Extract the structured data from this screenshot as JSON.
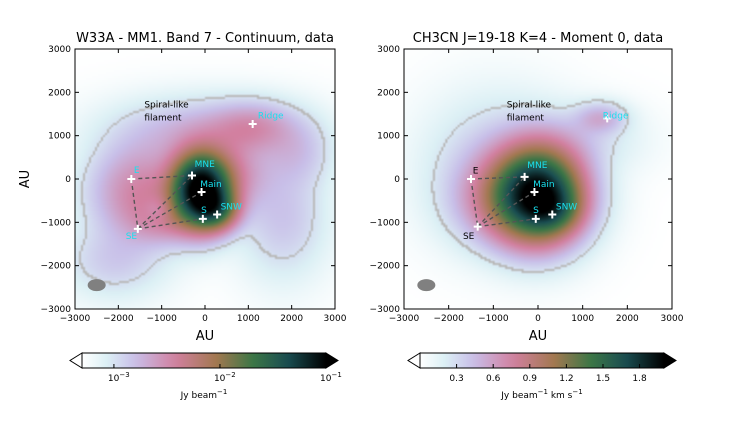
{
  "chart_data": [
    {
      "type": "heatmap",
      "title": "W33A - MM1. Band 7 - Continuum, data",
      "xlabel": "AU",
      "ylabel": "AU",
      "xlim": [
        -3000,
        3000
      ],
      "ylim": [
        -3000,
        3000
      ],
      "xticks": [
        "−3000",
        "−2000",
        "−1000",
        "0",
        "1000",
        "2000",
        "3000"
      ],
      "yticks": [
        "−3000",
        "−2000",
        "−1000",
        "0",
        "1000",
        "2000",
        "3000"
      ],
      "colorbar": {
        "scale": "log",
        "range": [
          0.0005,
          0.1
        ],
        "ticks": [
          "10",
          "10",
          "10"
        ],
        "tick_exponents": [
          "−3",
          "−2",
          "−1"
        ],
        "tick_values": [
          0.001,
          0.01,
          0.1
        ],
        "label": "Jy beam",
        "label_exponent": "−1",
        "extend": "both"
      },
      "annotations": [
        {
          "text": "Spiral-like",
          "x": -1400,
          "y": 1650,
          "color": "#000000"
        },
        {
          "text": "filament",
          "x": -1400,
          "y": 1350,
          "color": "#000000"
        }
      ],
      "sources": [
        {
          "name": "E",
          "x": -1700,
          "y": 0,
          "label_dx": 60,
          "label_dy": 140
        },
        {
          "name": "SE",
          "x": -1550,
          "y": -1150,
          "label_dx": -280,
          "label_dy": -230
        },
        {
          "name": "MNE",
          "x": -300,
          "y": 80,
          "label_dx": 60,
          "label_dy": 200
        },
        {
          "name": "Main",
          "x": -80,
          "y": -300,
          "label_dx": -30,
          "label_dy": 120
        },
        {
          "name": "SNW",
          "x": 280,
          "y": -820,
          "label_dx": 80,
          "label_dy": 120
        },
        {
          "name": "S",
          "x": -50,
          "y": -920,
          "label_dx": -40,
          "label_dy": 130
        },
        {
          "name": "Ridge",
          "x": 1100,
          "y": 1270,
          "label_dx": 120,
          "label_dy": 130
        }
      ],
      "links": [
        [
          "E",
          "MNE"
        ],
        [
          "E",
          "SE"
        ],
        [
          "SE",
          "MNE"
        ],
        [
          "SE",
          "Main"
        ],
        [
          "SE",
          "S"
        ]
      ],
      "emission": [
        {
          "x": -100,
          "y": -250,
          "sx": 420,
          "sy": 520,
          "a": 2.3
        },
        {
          "x": 250,
          "y": -700,
          "sx": 330,
          "sy": 300,
          "a": 0.8
        },
        {
          "x": -1500,
          "y": -300,
          "sx": 700,
          "sy": 700,
          "a": 0.35
        },
        {
          "x": -900,
          "y": -900,
          "sx": 500,
          "sy": 350,
          "a": 0.25
        },
        {
          "x": 500,
          "y": 100,
          "sx": 600,
          "sy": 500,
          "a": 0.3
        },
        {
          "x": 1100,
          "y": 1200,
          "sx": 600,
          "sy": 350,
          "a": 0.22
        },
        {
          "x": 0,
          "y": 1100,
          "sx": 1200,
          "sy": 450,
          "a": 0.18
        },
        {
          "x": 1800,
          "y": -900,
          "sx": 600,
          "sy": 800,
          "a": 0.12
        },
        {
          "x": -2100,
          "y": -1900,
          "sx": 700,
          "sy": 500,
          "a": 0.1
        },
        {
          "x": 2100,
          "y": 600,
          "sx": 500,
          "sy": 500,
          "a": 0.12
        },
        {
          "x": -1050,
          "y": -700,
          "sx": 260,
          "sy": 220,
          "a": -0.2
        }
      ]
    },
    {
      "type": "heatmap",
      "title": "CH3CN J=19-18 K=4 - Moment 0, data",
      "xlabel": "AU",
      "ylabel": "",
      "xlim": [
        -3000,
        3000
      ],
      "ylim": [
        -3000,
        3000
      ],
      "xticks": [
        "−3000",
        "−2000",
        "−1000",
        "0",
        "1000",
        "2000",
        "3000"
      ],
      "yticks": [
        "−3000",
        "−2000",
        "−1000",
        "0",
        "1000",
        "2000",
        "3000"
      ],
      "colorbar": {
        "scale": "linear",
        "range": [
          0.0,
          2.0
        ],
        "ticks": [
          "0.3",
          "0.6",
          "0.9",
          "1.2",
          "1.5",
          "1.8"
        ],
        "tick_values": [
          0.3,
          0.6,
          0.9,
          1.2,
          1.5,
          1.8
        ],
        "label": "Jy beam",
        "label_exponent": "−1",
        "label_suffix": " km s",
        "label_suffix_exponent": "−1",
        "extend": "both"
      },
      "annotations": [
        {
          "text": "Spiral-like",
          "x": -700,
          "y": 1650,
          "color": "#000000"
        },
        {
          "text": "filament",
          "x": -700,
          "y": 1350,
          "color": "#000000"
        }
      ],
      "sources": [
        {
          "name": "E",
          "x": -1500,
          "y": 0,
          "label_dx": 40,
          "label_dy": 130
        },
        {
          "name": "SE",
          "x": -1350,
          "y": -1100,
          "label_dx": -330,
          "label_dy": -280
        },
        {
          "name": "MNE",
          "x": -300,
          "y": 50,
          "label_dx": 60,
          "label_dy": 200
        },
        {
          "name": "Main",
          "x": -80,
          "y": -300,
          "label_dx": -30,
          "label_dy": 120
        },
        {
          "name": "SNW",
          "x": 320,
          "y": -820,
          "label_dx": 80,
          "label_dy": 120
        },
        {
          "name": "S",
          "x": -50,
          "y": -920,
          "label_dx": -60,
          "label_dy": 130
        },
        {
          "name": "Ridge",
          "x": 1550,
          "y": 1400,
          "label_dx": -100,
          "label_dy": 0
        }
      ],
      "links": [
        [
          "E",
          "MNE"
        ],
        [
          "E",
          "SE"
        ],
        [
          "SE",
          "MNE"
        ],
        [
          "SE",
          "Main"
        ],
        [
          "SE",
          "S"
        ]
      ],
      "emission": [
        {
          "x": 0,
          "y": -350,
          "sx": 600,
          "sy": 650,
          "a": 2.1
        },
        {
          "x": 350,
          "y": -700,
          "sx": 380,
          "sy": 330,
          "a": 0.4
        },
        {
          "x": -700,
          "y": -500,
          "sx": 700,
          "sy": 600,
          "a": 0.35
        },
        {
          "x": -900,
          "y": 300,
          "sx": 900,
          "sy": 900,
          "a": 0.12
        },
        {
          "x": 1400,
          "y": 1400,
          "sx": 350,
          "sy": 220,
          "a": 0.18
        },
        {
          "x": 800,
          "y": 900,
          "sx": 800,
          "sy": 450,
          "a": 0.08
        }
      ]
    }
  ]
}
